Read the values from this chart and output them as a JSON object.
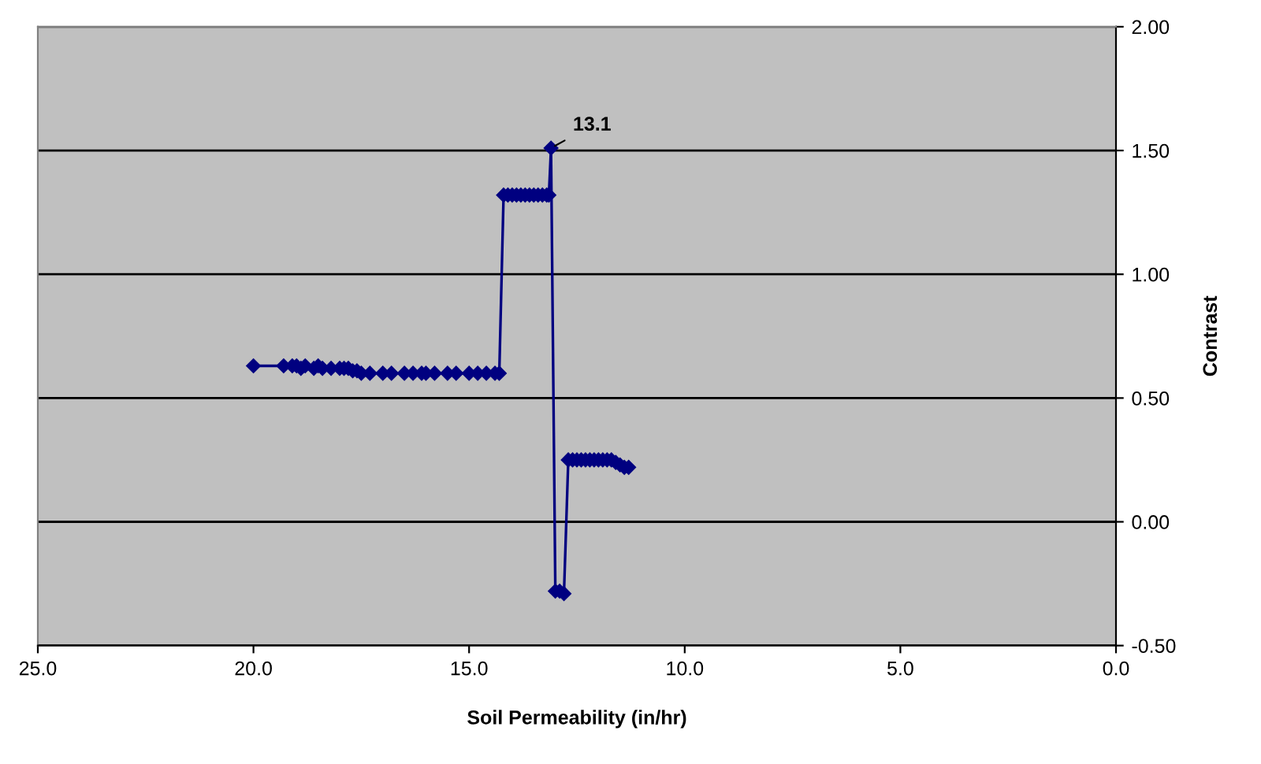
{
  "chart_data": {
    "type": "line",
    "xlabel": "Soil Permeability (in/hr)",
    "ylabel": "Contrast",
    "x": [
      20.0,
      19.3,
      19.1,
      19.0,
      18.9,
      18.8,
      18.6,
      18.5,
      18.4,
      18.2,
      18.0,
      17.9,
      17.8,
      17.7,
      17.6,
      17.5,
      17.3,
      17.0,
      16.8,
      16.5,
      16.3,
      16.1,
      16.0,
      15.8,
      15.5,
      15.3,
      15.0,
      14.8,
      14.6,
      14.4,
      14.3,
      14.2,
      14.1,
      14.0,
      13.9,
      13.8,
      13.7,
      13.6,
      13.5,
      13.4,
      13.3,
      13.2,
      13.15,
      13.1,
      13.0,
      12.9,
      12.8,
      12.7,
      12.6,
      12.5,
      12.4,
      12.3,
      12.2,
      12.1,
      12.0,
      11.9,
      11.8,
      11.7,
      11.6,
      11.5,
      11.4,
      11.3
    ],
    "series": [
      {
        "color": "#000080",
        "values": [
          0.63,
          0.63,
          0.63,
          0.63,
          0.62,
          0.63,
          0.62,
          0.63,
          0.62,
          0.62,
          0.62,
          0.62,
          0.62,
          0.61,
          0.61,
          0.6,
          0.6,
          0.6,
          0.6,
          0.6,
          0.6,
          0.6,
          0.6,
          0.6,
          0.6,
          0.6,
          0.6,
          0.6,
          0.6,
          0.6,
          0.6,
          1.32,
          1.32,
          1.32,
          1.32,
          1.32,
          1.32,
          1.32,
          1.32,
          1.32,
          1.32,
          1.32,
          1.32,
          1.51,
          -0.28,
          -0.28,
          -0.29,
          0.25,
          0.25,
          0.25,
          0.25,
          0.25,
          0.25,
          0.25,
          0.25,
          0.25,
          0.25,
          0.25,
          0.24,
          0.23,
          0.22,
          0.22
        ]
      }
    ],
    "annotations": [
      {
        "text": "13.1",
        "x": 13.1,
        "y": 1.51
      }
    ],
    "xlim": [
      25,
      0
    ],
    "xticks": [
      {
        "value": 25,
        "label": "25.0"
      },
      {
        "value": 20,
        "label": "20.0"
      },
      {
        "value": 15,
        "label": "15.0"
      },
      {
        "value": 10,
        "label": "10.0"
      },
      {
        "value": 5,
        "label": "5.0"
      },
      {
        "value": 0,
        "label": "0.0"
      }
    ],
    "ylim": [
      -0.5,
      2.0
    ],
    "yticks": [
      {
        "value": -0.5,
        "label": "-0.50"
      },
      {
        "value": 0,
        "label": "0.00"
      },
      {
        "value": 0.5,
        "label": "0.50"
      },
      {
        "value": 1.0,
        "label": "1.00"
      },
      {
        "value": 1.5,
        "label": "1.50"
      },
      {
        "value": 2.0,
        "label": "2.00"
      }
    ],
    "grid": "y",
    "marker": "diamond",
    "line_style": "solid"
  }
}
